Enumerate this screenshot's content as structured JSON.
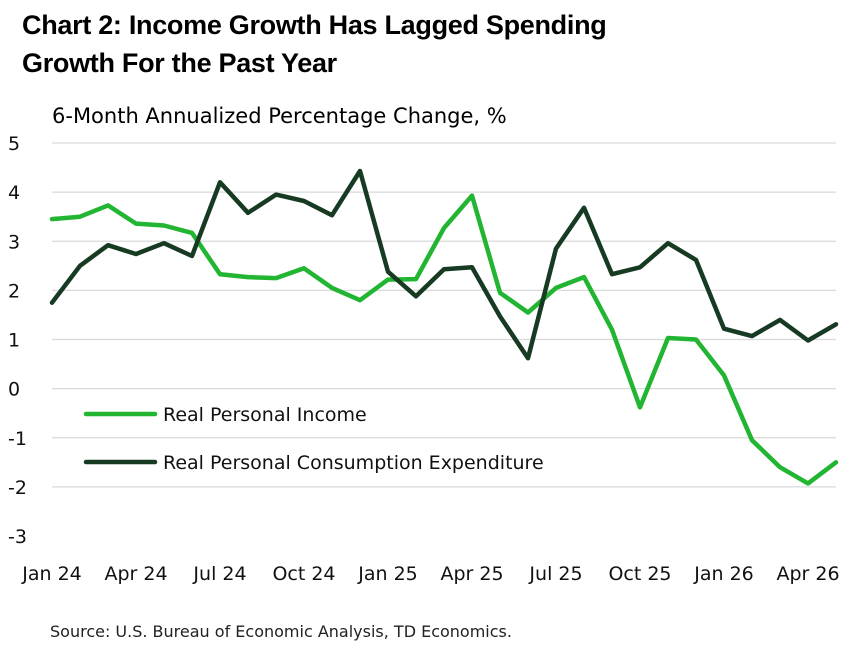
{
  "title_line1": "Chart 2: Income Growth Has Lagged Spending",
  "title_line2": "Growth For the Past Year",
  "ylabel": "6-Month Annualized Percentage Change, %",
  "source": "Source: U.S. Bureau of Economic Analysis, TD Economics.",
  "colors": {
    "income": "#21b532",
    "pce": "#173a22",
    "grid": "#d9d9d9"
  },
  "chart_data": {
    "type": "line",
    "x": [
      "Jan 24",
      "Feb 24",
      "Mar 24",
      "Apr 24",
      "May 24",
      "Jun 24",
      "Jul 24",
      "Aug 24",
      "Sep 24",
      "Oct 24",
      "Nov 24",
      "Dec 24",
      "Jan 25",
      "Feb 25",
      "Mar 25",
      "Apr 25",
      "May 25",
      "Jun 25",
      "Jul 25",
      "Aug 25",
      "Sep 25",
      "Oct 25",
      "Nov 25",
      "Dec 25",
      "Jan 26",
      "Feb 26",
      "Mar 26",
      "Apr 26",
      "May 26"
    ],
    "x_tick_labels": [
      "Jan 24",
      "Apr 24",
      "Jul 24",
      "Oct 24",
      "Jan 25",
      "Apr 25",
      "Jul 25",
      "Oct 25",
      "Jan 26",
      "Apr 26"
    ],
    "y_ticks": [
      "5",
      "4",
      "3",
      "2",
      "1",
      "0",
      "-1",
      "-2",
      "-3"
    ],
    "ylim": [
      -3,
      5
    ],
    "grid": true,
    "legend_position": "lower-left",
    "series": [
      {
        "name": "Real Personal Income",
        "values": [
          3.45,
          3.5,
          3.73,
          3.36,
          3.32,
          3.17,
          2.33,
          2.27,
          2.25,
          2.45,
          2.05,
          1.8,
          2.22,
          2.23,
          3.27,
          3.93,
          1.95,
          1.55,
          2.05,
          2.27,
          1.2,
          -0.38,
          1.03,
          1.0,
          0.27,
          -1.05,
          -1.6,
          -1.93,
          -1.5
        ]
      },
      {
        "name": "Real Personal Consumption Expenditure",
        "values": [
          1.75,
          2.5,
          2.92,
          2.74,
          2.96,
          2.7,
          4.2,
          3.58,
          3.95,
          3.82,
          3.53,
          4.43,
          2.38,
          1.88,
          2.43,
          2.47,
          1.47,
          0.62,
          2.85,
          3.68,
          2.33,
          2.47,
          2.96,
          2.62,
          1.22,
          1.07,
          1.4,
          0.98,
          1.31
        ]
      }
    ]
  }
}
